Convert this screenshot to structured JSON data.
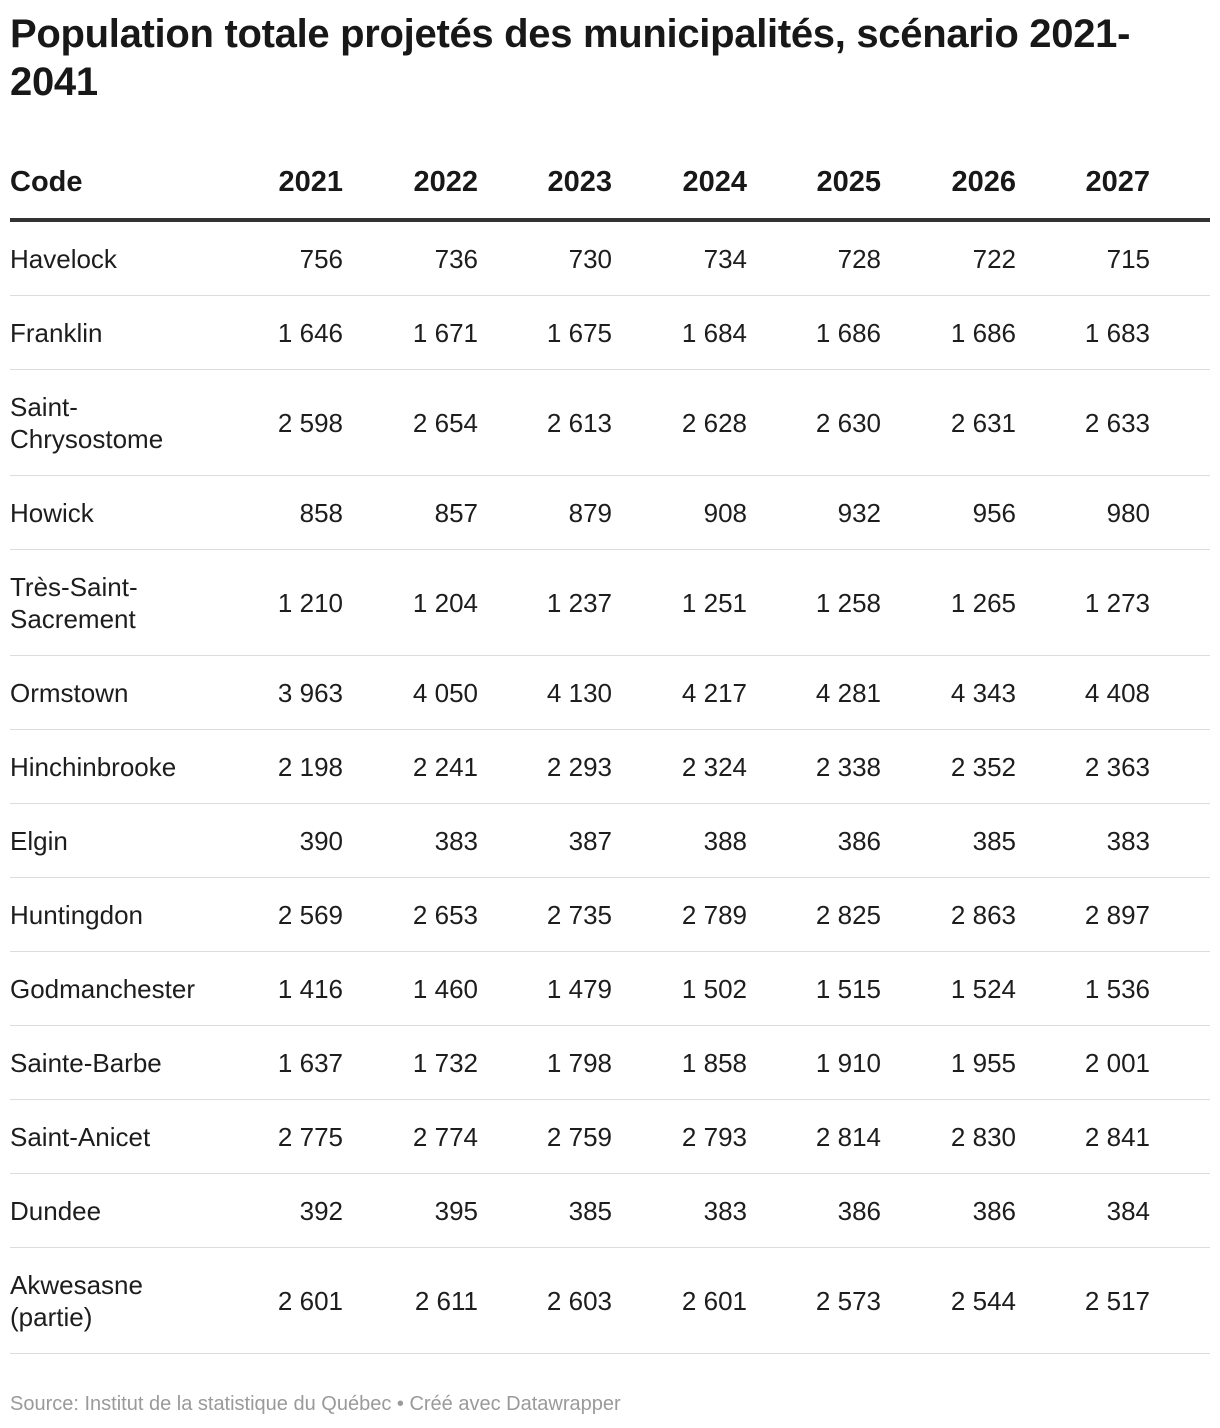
{
  "chart_data": {
    "type": "table",
    "title": "Population totale projetés des municipalités, scénario 2021-2041",
    "columns": [
      "Code",
      "2021",
      "2022",
      "2023",
      "2024",
      "2025",
      "2026",
      "2027"
    ],
    "rows": [
      {
        "code": "Havelock",
        "display": [
          "756",
          "736",
          "730",
          "734",
          "728",
          "722",
          "715"
        ],
        "values": [
          756,
          736,
          730,
          734,
          728,
          722,
          715
        ]
      },
      {
        "code": "Franklin",
        "display": [
          "1 646",
          "1 671",
          "1 675",
          "1 684",
          "1 686",
          "1 686",
          "1 683"
        ],
        "values": [
          1646,
          1671,
          1675,
          1684,
          1686,
          1686,
          1683
        ]
      },
      {
        "code": "Saint-Chrysostome",
        "display": [
          "2 598",
          "2 654",
          "2 613",
          "2 628",
          "2 630",
          "2 631",
          "2 633"
        ],
        "values": [
          2598,
          2654,
          2613,
          2628,
          2630,
          2631,
          2633
        ]
      },
      {
        "code": "Howick",
        "display": [
          "858",
          "857",
          "879",
          "908",
          "932",
          "956",
          "980"
        ],
        "values": [
          858,
          857,
          879,
          908,
          932,
          956,
          980
        ]
      },
      {
        "code": "Très-Saint-Sacrement",
        "display": [
          "1 210",
          "1 204",
          "1 237",
          "1 251",
          "1 258",
          "1 265",
          "1 273"
        ],
        "values": [
          1210,
          1204,
          1237,
          1251,
          1258,
          1265,
          1273
        ]
      },
      {
        "code": "Ormstown",
        "display": [
          "3 963",
          "4 050",
          "4 130",
          "4 217",
          "4 281",
          "4 343",
          "4 408"
        ],
        "values": [
          3963,
          4050,
          4130,
          4217,
          4281,
          4343,
          4408
        ]
      },
      {
        "code": "Hinchinbrooke",
        "display": [
          "2 198",
          "2 241",
          "2 293",
          "2 324",
          "2 338",
          "2 352",
          "2 363"
        ],
        "values": [
          2198,
          2241,
          2293,
          2324,
          2338,
          2352,
          2363
        ]
      },
      {
        "code": "Elgin",
        "display": [
          "390",
          "383",
          "387",
          "388",
          "386",
          "385",
          "383"
        ],
        "values": [
          390,
          383,
          387,
          388,
          386,
          385,
          383
        ]
      },
      {
        "code": "Huntingdon",
        "display": [
          "2 569",
          "2 653",
          "2 735",
          "2 789",
          "2 825",
          "2 863",
          "2 897"
        ],
        "values": [
          2569,
          2653,
          2735,
          2789,
          2825,
          2863,
          2897
        ]
      },
      {
        "code": "Godmanchester",
        "display": [
          "1 416",
          "1 460",
          "1 479",
          "1 502",
          "1 515",
          "1 524",
          "1 536"
        ],
        "values": [
          1416,
          1460,
          1479,
          1502,
          1515,
          1524,
          1536
        ]
      },
      {
        "code": "Sainte-Barbe",
        "display": [
          "1 637",
          "1 732",
          "1 798",
          "1 858",
          "1 910",
          "1 955",
          "2 001"
        ],
        "values": [
          1637,
          1732,
          1798,
          1858,
          1910,
          1955,
          2001
        ]
      },
      {
        "code": "Saint-Anicet",
        "display": [
          "2 775",
          "2 774",
          "2 759",
          "2 793",
          "2 814",
          "2 830",
          "2 841"
        ],
        "values": [
          2775,
          2774,
          2759,
          2793,
          2814,
          2830,
          2841
        ]
      },
      {
        "code": "Dundee",
        "display": [
          "392",
          "395",
          "385",
          "383",
          "386",
          "386",
          "384"
        ],
        "values": [
          392,
          395,
          385,
          383,
          386,
          386,
          384
        ]
      },
      {
        "code": "Akwesasne (partie)",
        "display": [
          "2 601",
          "2 611",
          "2 603",
          "2 601",
          "2 573",
          "2 544",
          "2 517"
        ],
        "values": [
          2601,
          2611,
          2603,
          2601,
          2573,
          2544,
          2517
        ]
      }
    ]
  },
  "footer": "Source: Institut de la statistique du Québec • Créé avec Datawrapper"
}
